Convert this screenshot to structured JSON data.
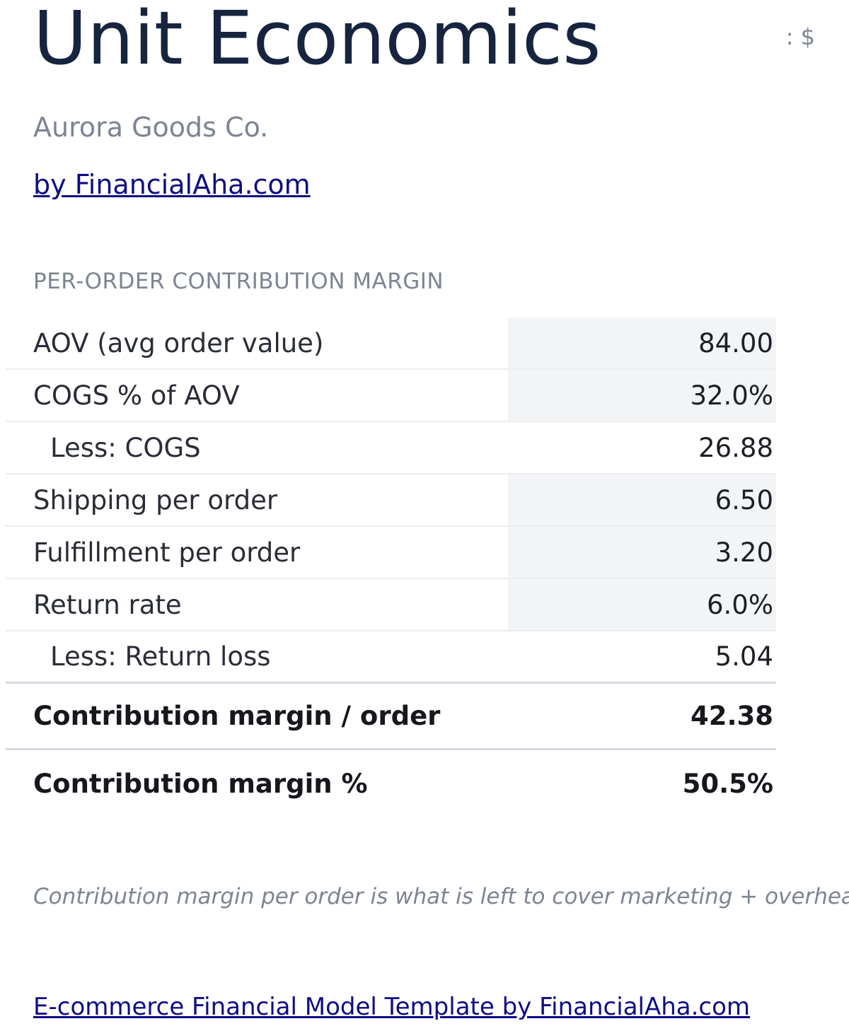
{
  "header": {
    "title": "Unit Economics",
    "currency_label": ": $",
    "company": "Aurora Goods Co.",
    "byline": "by FinancialAha.com"
  },
  "section": {
    "heading": "PER-ORDER CONTRIBUTION MARGIN"
  },
  "rows": [
    {
      "label": "AOV (avg order value)",
      "value": "84.00"
    },
    {
      "label": "COGS % of AOV",
      "value": "32.0%"
    },
    {
      "label": "Less: COGS",
      "value": "26.88"
    },
    {
      "label": "Shipping per order",
      "value": "6.50"
    },
    {
      "label": "Fulfillment per order",
      "value": "3.20"
    },
    {
      "label": "Return rate",
      "value": "6.0%"
    },
    {
      "label": "Less: Return loss",
      "value": "5.04"
    },
    {
      "label": "Contribution margin / order",
      "value": "42.38"
    },
    {
      "label": "Contribution margin %",
      "value": "50.5%"
    }
  ],
  "footnote": "Contribution margin per order is what is left to cover marketing + overhead.",
  "footer": {
    "link_text": "E-commerce Financial Model Template by FinancialAha.com"
  },
  "colors": {
    "title": "#172440",
    "muted": "#7d8492",
    "link": "#0d0d85",
    "input_cell_bg": "#f3f4f6"
  }
}
